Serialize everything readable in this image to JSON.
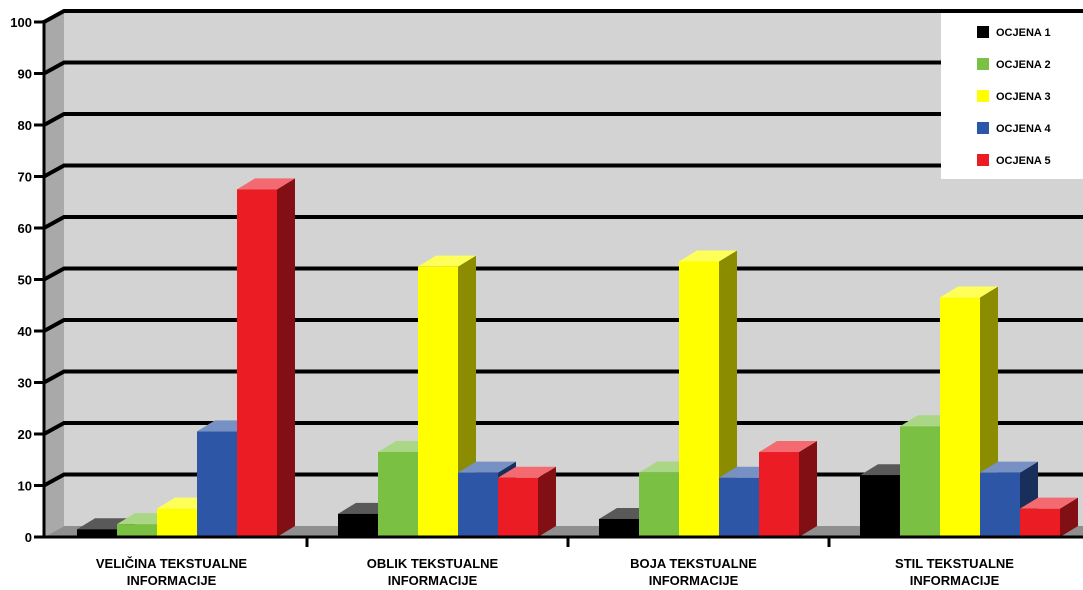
{
  "chart_data": {
    "type": "bar",
    "title": "",
    "xlabel": "",
    "ylabel": "",
    "ylim": [
      0,
      100
    ],
    "yticks": [
      0,
      10,
      20,
      30,
      40,
      50,
      60,
      70,
      80,
      90,
      100
    ],
    "grid": true,
    "legend_position": "top-right",
    "categories": [
      [
        "VELIČINA TEKSTUALNE",
        "INFORMACIJE"
      ],
      [
        "OBLIK TEKSTUALNE",
        "INFORMACIJE"
      ],
      [
        "BOJA TEKSTUALNE",
        "INFORMACIJE"
      ],
      [
        "STIL TEKSTUALNE",
        "INFORMACIJE"
      ]
    ],
    "series": [
      {
        "name": "OCJENA 1",
        "color": "#000000",
        "values": [
          1.5,
          4.5,
          3.5,
          12
        ]
      },
      {
        "name": "OCJENA 2",
        "color": "#7ac143",
        "values": [
          2.5,
          16.5,
          12.5,
          21.5
        ]
      },
      {
        "name": "OCJENA 3",
        "color": "#ffff00",
        "values": [
          5.5,
          52.5,
          53.5,
          46.5
        ]
      },
      {
        "name": "OCJENA 4",
        "color": "#2e56a6",
        "values": [
          20.5,
          12.5,
          11.5,
          12.5
        ]
      },
      {
        "name": "OCJENA 5",
        "color": "#ec1c24",
        "values": [
          67.5,
          11.5,
          16.5,
          5.5
        ]
      }
    ]
  }
}
